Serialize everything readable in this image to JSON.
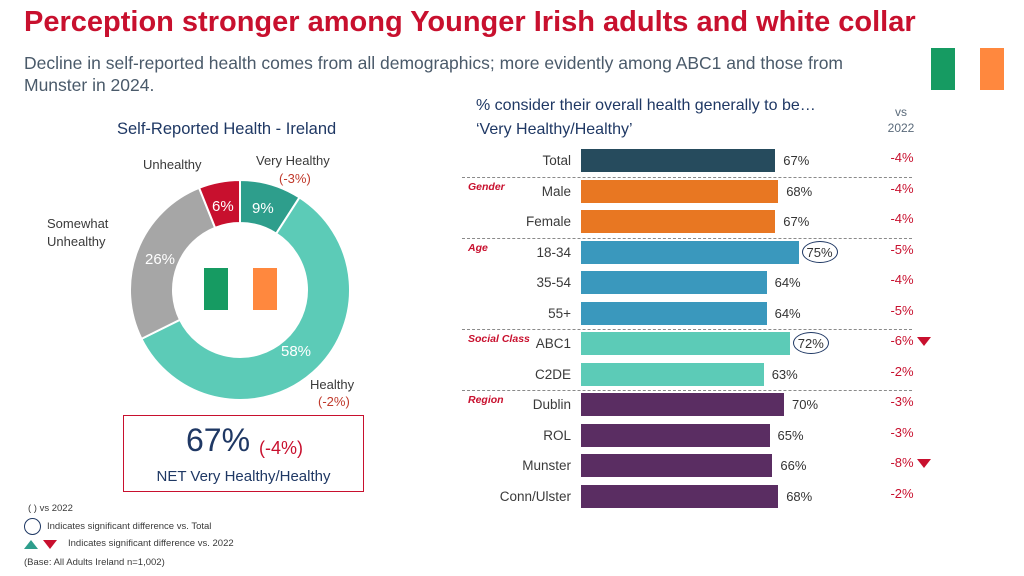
{
  "header": {
    "title": "Perception stronger among Younger Irish adults and white collar",
    "subtitle": "Decline in self-reported health comes from all demographics; more evidently among ABC1 and those from Munster in 2024."
  },
  "colors": {
    "flag_green": "#169b62",
    "flag_orange": "#ff883e",
    "brand_red": "#c8102e",
    "total": "#264b5d",
    "gender": "#e87722",
    "age": "#3a98bd",
    "social": "#5ccbb7",
    "region": "#5a2d62"
  },
  "chart_data": [
    {
      "type": "pie",
      "title": "Self-Reported Health - Ireland",
      "slices": [
        {
          "name": "Very Healthy",
          "value": 9,
          "label": "9%",
          "change": "(-3%)",
          "color": "#2e9e8c"
        },
        {
          "name": "Healthy",
          "value": 58,
          "label": "58%",
          "change": "(-2%)",
          "color": "#5ccbb7"
        },
        {
          "name": "Somewhat Unhealthy",
          "value": 26,
          "label": "26%",
          "change": "",
          "color": "#a6a6a6"
        },
        {
          "name": "Unhealthy",
          "value": 6,
          "label": "6%",
          "change": "",
          "color": "#c8102e"
        }
      ],
      "net": {
        "value": "67%",
        "change": "(-4%)",
        "label": "NET Very Healthy/Healthy"
      }
    },
    {
      "type": "bar",
      "title": "% consider their overall health generally to be… ‘Very Healthy/Healthy’",
      "change_header": "vs 2022",
      "xlim": [
        0,
        100
      ],
      "groups": [
        "Gender",
        "Age",
        "Social Class",
        "Region"
      ],
      "rows": [
        {
          "label": "Total",
          "value": 67,
          "value_label": "67%",
          "change": "-4%",
          "group": "",
          "sig_total": false,
          "sig_2022": false
        },
        {
          "label": "Male",
          "value": 68,
          "value_label": "68%",
          "change": "-4%",
          "group": "Gender",
          "sig_total": false,
          "sig_2022": false
        },
        {
          "label": "Female",
          "value": 67,
          "value_label": "67%",
          "change": "-4%",
          "group": "Gender",
          "sig_total": false,
          "sig_2022": false
        },
        {
          "label": "18-34",
          "value": 75,
          "value_label": "75%",
          "change": "-5%",
          "group": "Age",
          "sig_total": true,
          "sig_2022": false
        },
        {
          "label": "35-54",
          "value": 64,
          "value_label": "64%",
          "change": "-4%",
          "group": "Age",
          "sig_total": false,
          "sig_2022": false
        },
        {
          "label": "55+",
          "value": 64,
          "value_label": "64%",
          "change": "-5%",
          "group": "Age",
          "sig_total": false,
          "sig_2022": false
        },
        {
          "label": "ABC1",
          "value": 72,
          "value_label": "72%",
          "change": "-6%",
          "group": "Social Class",
          "sig_total": true,
          "sig_2022": true
        },
        {
          "label": "C2DE",
          "value": 63,
          "value_label": "63%",
          "change": "-2%",
          "group": "Social Class",
          "sig_total": false,
          "sig_2022": false
        },
        {
          "label": "Dublin",
          "value": 70,
          "value_label": "70%",
          "change": "-3%",
          "group": "Region",
          "sig_total": false,
          "sig_2022": false
        },
        {
          "label": "ROL",
          "value": 65,
          "value_label": "65%",
          "change": "-3%",
          "group": "Region",
          "sig_total": false,
          "sig_2022": false
        },
        {
          "label": "Munster",
          "value": 66,
          "value_label": "66%",
          "change": "-8%",
          "group": "Region",
          "sig_total": false,
          "sig_2022": true
        },
        {
          "label": "Conn/Ulster",
          "value": 68,
          "value_label": "68%",
          "change": "-2%",
          "group": "Region",
          "sig_total": false,
          "sig_2022": false
        }
      ]
    }
  ],
  "legend": {
    "vs_note": "( ) vs 2022",
    "circle_note": "Indicates significant difference vs. Total",
    "triangle_note": "Indicates significant difference vs. 2022",
    "base_note": "(Base: All Adults Ireland  n=1,002)"
  }
}
